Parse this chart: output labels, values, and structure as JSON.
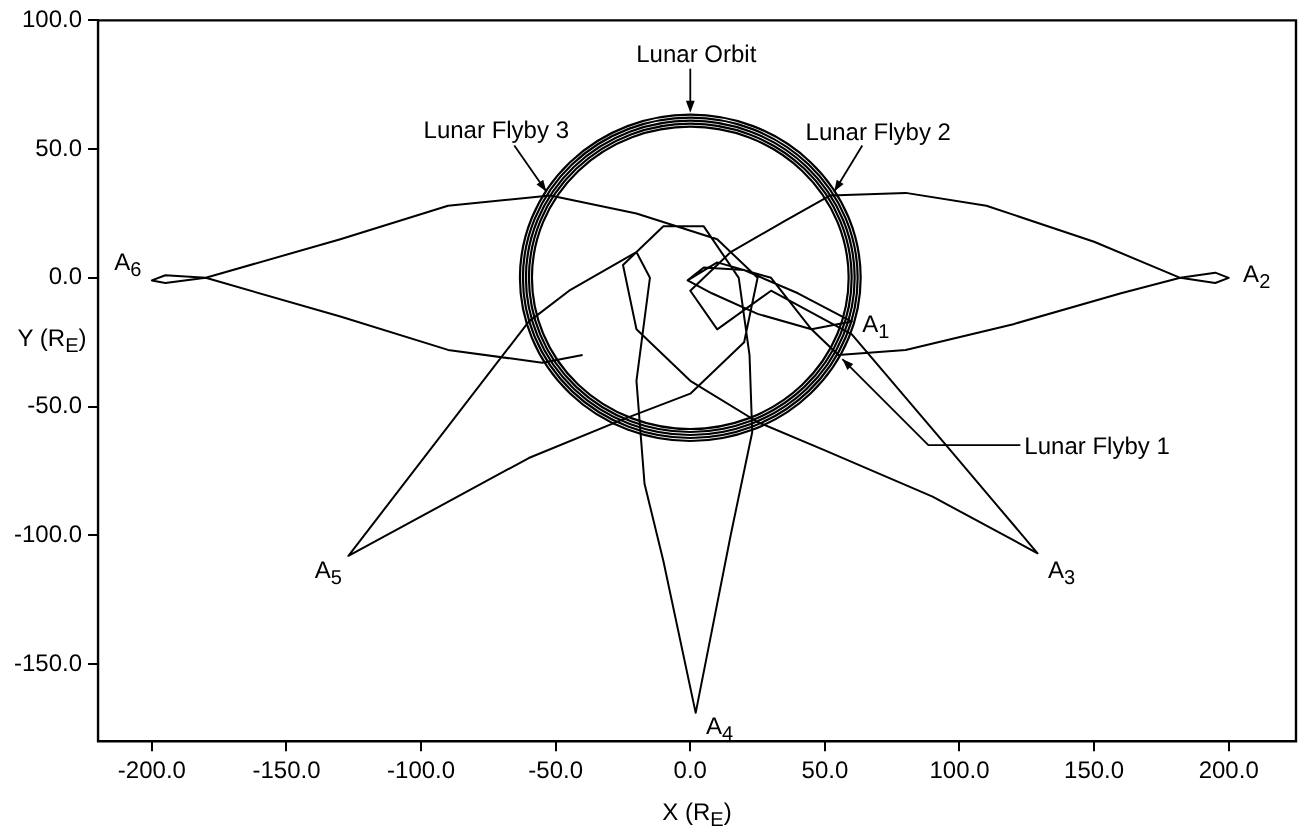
{
  "chart_data": {
    "type": "line",
    "xlabel": "X (R$_{E}$)",
    "ylabel": "Y (R$_{E}$)",
    "xlim": [
      -220,
      225
    ],
    "ylim": [
      -180,
      100
    ],
    "xticks": [
      {
        "value": -200,
        "label": "-200.0"
      },
      {
        "value": -150,
        "label": "-150.0"
      },
      {
        "value": -100,
        "label": "-100.0"
      },
      {
        "value": -50,
        "label": "-50.0"
      },
      {
        "value": 0,
        "label": "0.0"
      },
      {
        "value": 50,
        "label": "50.0"
      },
      {
        "value": 100,
        "label": "100.0"
      },
      {
        "value": 150,
        "label": "150.0"
      },
      {
        "value": 200,
        "label": "200.0"
      }
    ],
    "yticks": [
      {
        "value": -150,
        "label": "-150.0"
      },
      {
        "value": -100,
        "label": "-100.0"
      },
      {
        "value": -50,
        "label": "-50.0"
      },
      {
        "value": 0,
        "label": "0.0"
      },
      {
        "value": 50,
        "label": "50.0"
      },
      {
        "value": 100,
        "label": "100.0"
      }
    ],
    "marker": "none",
    "grid": false,
    "series": [
      {
        "color": "#000000",
        "x": [
          -1,
          5,
          20,
          40,
          60,
          45,
          25,
          8,
          -1,
          10,
          30,
          45,
          55,
          80,
          120,
          160,
          182,
          195,
          200,
          195,
          182,
          150,
          110,
          80,
          52,
          35,
          15,
          0,
          10,
          30,
          60,
          95,
          129,
          90,
          50,
          25,
          0,
          -20,
          -25,
          -10,
          5,
          18,
          22,
          23,
          15,
          2,
          -10,
          -17,
          -20,
          -15,
          -20,
          -45,
          -60,
          -127,
          -60,
          -25,
          0,
          20,
          25,
          10,
          -20,
          -52,
          -90,
          -130,
          -180,
          -195,
          -200,
          -195,
          -180,
          -130,
          -90,
          -55,
          -40
        ],
        "values": [
          -1,
          4,
          3,
          -6,
          -17,
          -20,
          -14,
          -6,
          -1,
          6,
          0,
          -20,
          -30,
          -28,
          -18,
          -6,
          0,
          2,
          0,
          -2,
          0,
          14,
          28,
          33,
          32,
          22,
          10,
          -5,
          -20,
          -5,
          -22,
          -65,
          -107,
          -85,
          -67,
          -56,
          -40,
          -20,
          5,
          20,
          20,
          0,
          -30,
          -60,
          -100,
          -169,
          -110,
          -80,
          -40,
          0,
          10,
          -5,
          -17,
          -108,
          -70,
          -55,
          -45,
          -25,
          0,
          15,
          25,
          32,
          28,
          15,
          0,
          -2,
          -1,
          1,
          0,
          -15,
          -28,
          -33,
          -30
        ]
      }
    ],
    "annotations": [
      "Lunar Orbit",
      {
        "text": "Lunar Flyby 3",
        "x": -52,
        "y": 32
      },
      {
        "text": "Lunar Flyby 2",
        "x": 52,
        "y": 32
      },
      {
        "text": "Lunar Flyby 1",
        "x": 55,
        "y": -30
      },
      {
        "text": "A$_{1}$",
        "x": 60,
        "y": -17
      },
      {
        "text": "A$_{2}$",
        "x": 200,
        "y": 0
      },
      {
        "text": "A$_{3}$",
        "x": 129,
        "y": -107
      },
      {
        "text": "A$_{4}$",
        "x": 2,
        "y": -169
      },
      {
        "text": "A$_{5}$",
        "x": -127,
        "y": -108
      },
      {
        "text": "A$_{6}$",
        "x": -200,
        "y": 0
      }
    ]
  }
}
